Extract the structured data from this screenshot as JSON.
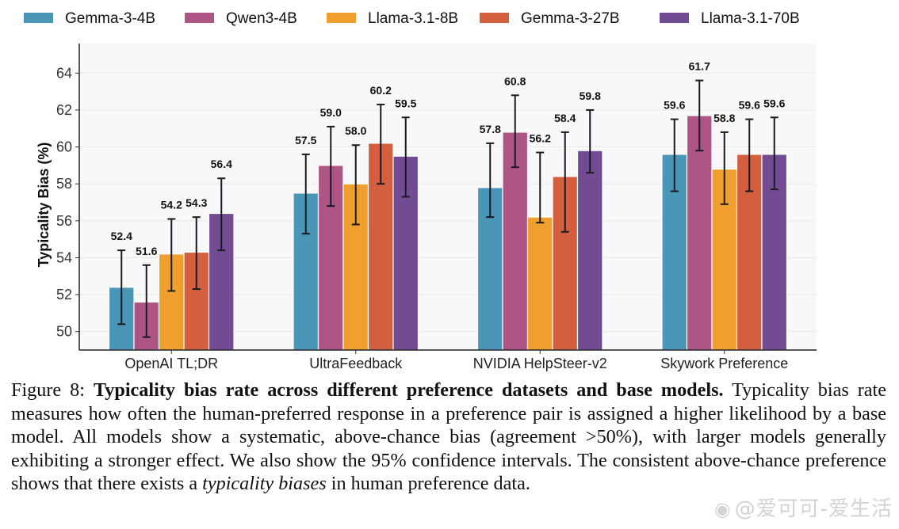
{
  "chart_data": {
    "type": "bar",
    "title": "",
    "xlabel": "",
    "ylabel": "Typicality Bias (%)",
    "ylim": [
      49.0,
      65.6
    ],
    "yticks": [
      50,
      52,
      54,
      56,
      58,
      60,
      62,
      64
    ],
    "grid": true,
    "legend_position": "top",
    "categories": [
      "OpenAI TL;DR",
      "UltraFeedback",
      "NVIDIA HelpSteer-v2",
      "Skywork Preference"
    ],
    "series": [
      {
        "name": "Gemma-3-4B",
        "color": "#4a96b6",
        "values": [
          52.4,
          57.5,
          57.8,
          59.6
        ],
        "labels": [
          "52.4",
          "57.5",
          "57.8",
          "59.6"
        ],
        "ci_low": [
          50.4,
          55.3,
          56.2,
          57.6
        ],
        "ci_high": [
          54.4,
          59.6,
          60.2,
          61.5
        ]
      },
      {
        "name": "Qwen3-4B",
        "color": "#ad5685",
        "values": [
          51.6,
          59.0,
          60.8,
          61.7
        ],
        "labels": [
          "51.6",
          "59.0",
          "60.8",
          "61.7"
        ],
        "ci_low": [
          49.7,
          56.8,
          58.9,
          59.8
        ],
        "ci_high": [
          53.6,
          61.1,
          62.8,
          63.6
        ]
      },
      {
        "name": "Llama-3.1-8B",
        "color": "#ef9f2e",
        "values": [
          54.2,
          58.0,
          56.2,
          58.8
        ],
        "labels": [
          "54.2",
          "58.0",
          "56.2",
          "58.8"
        ],
        "ci_low": [
          52.2,
          55.8,
          55.9,
          56.9
        ],
        "ci_high": [
          56.1,
          60.1,
          59.7,
          60.8
        ]
      },
      {
        "name": "Gemma-3-27B",
        "color": "#d35f3e",
        "values": [
          54.3,
          60.2,
          58.4,
          59.6
        ],
        "labels": [
          "54.3",
          "60.2",
          "58.4",
          "59.6"
        ],
        "ci_low": [
          52.3,
          58.0,
          55.4,
          57.6
        ],
        "ci_high": [
          56.2,
          62.3,
          60.8,
          61.5
        ]
      },
      {
        "name": "Llama-3.1-70B",
        "color": "#714c93",
        "values": [
          56.4,
          59.5,
          59.8,
          59.6
        ],
        "labels": [
          "56.4",
          "59.5",
          "59.8",
          "59.6"
        ],
        "ci_low": [
          54.4,
          57.3,
          58.6,
          57.7
        ],
        "ci_high": [
          58.3,
          61.6,
          62.0,
          61.6
        ]
      }
    ]
  },
  "caption": {
    "label": "Figure 8:",
    "bold_title": "Typicality bias rate across different preference datasets and base models.",
    "text_1": "Typicality bias rate measures how often the human-preferred response in a preference pair is assigned a higher likelihood by a base model. All models show a systematic, above-chance bias (agreement >50%), with larger models generally exhibiting a stronger effect. We also show the 95% confidence intervals. The consistent above-chance preference shows that there exists a",
    "italic_term": "typicality biases",
    "text_2": "in human preference data."
  },
  "watermark": {
    "icon": "weibo-icon",
    "text": "@爱可可-爱生活"
  }
}
